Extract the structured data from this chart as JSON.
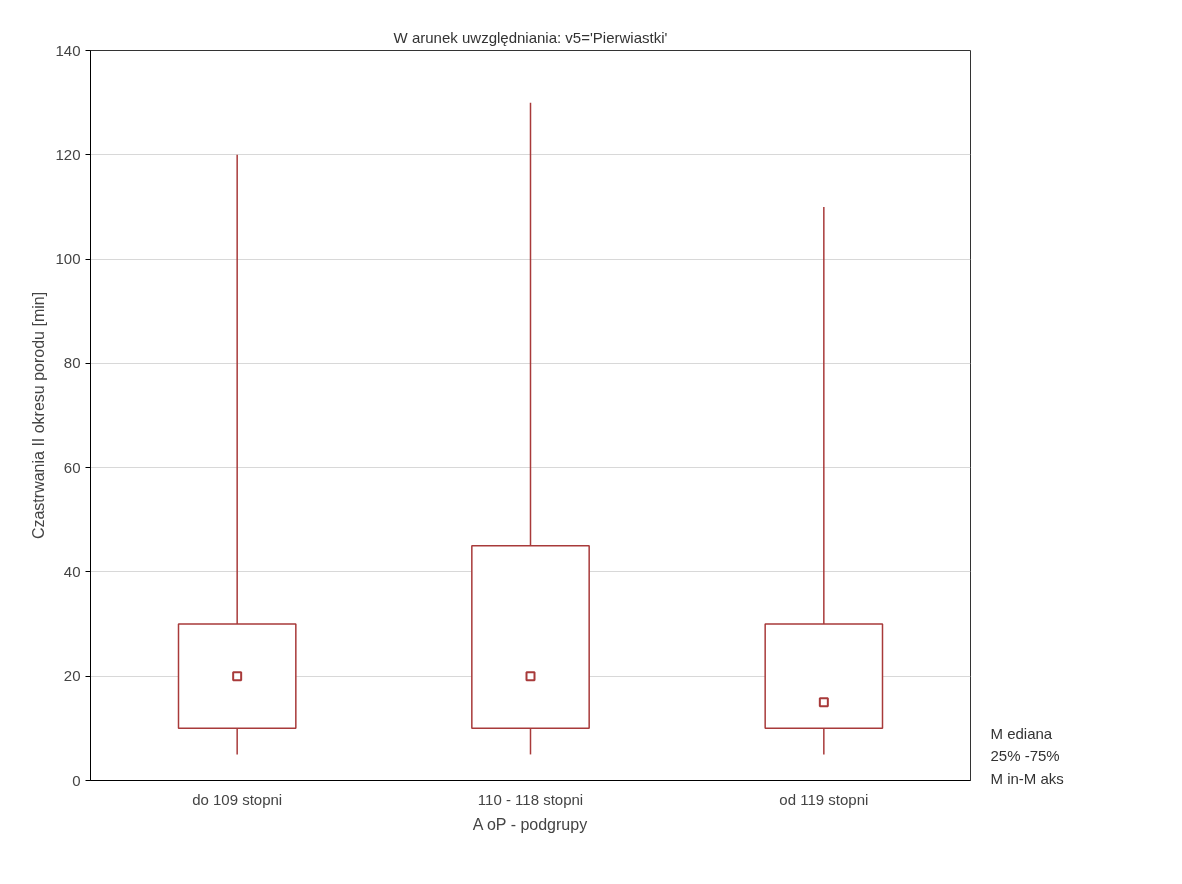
{
  "chart_data": {
    "type": "box",
    "title": "W arunek uwzględniania: v5='Pierwiastki'",
    "xlabel": "A oP - podgrupy",
    "ylabel": "Czastrwania II okresu porodu [min]",
    "categories": [
      "do 109 stopni",
      "110 - 118 stopni",
      "od 119 stopni"
    ],
    "series": [
      {
        "color": "#a83a3a",
        "boxes": [
          {
            "low": 5,
            "q1": 10,
            "median": 20,
            "q3": 30,
            "high": 120
          },
          {
            "low": 5,
            "q1": 10,
            "median": 20,
            "q3": 45,
            "high": 130
          },
          {
            "low": 5,
            "q1": 10,
            "median": 15,
            "q3": 30,
            "high": 110
          }
        ]
      }
    ],
    "ylim": [
      0,
      140
    ],
    "yticks": [
      0,
      20,
      40,
      60,
      80,
      100,
      120,
      140
    ],
    "grid": "y",
    "marker": "square",
    "annotations": [
      "M ediana",
      "25% -75%",
      "M in-M aks"
    ]
  }
}
